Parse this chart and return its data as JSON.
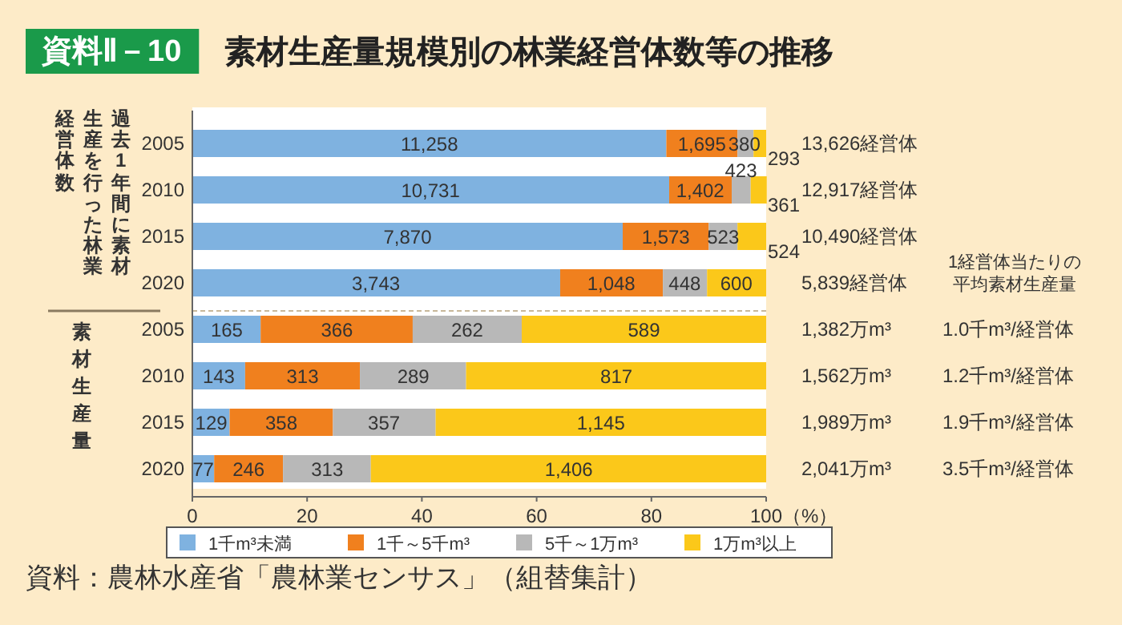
{
  "chart_data": [
    {
      "type": "bar",
      "orientation": "horizontal",
      "stacked": true,
      "title": "資料Ⅱ－10",
      "subtitle": "素材生産量規模別の林業経営体数等の推移",
      "ylabel": "過去1年間に素材生産を行った林業経営体数",
      "categories": [
        "2005",
        "2010",
        "2015",
        "2020"
      ],
      "xlim": [
        0,
        100
      ],
      "tick_labels": "y",
      "legend": false,
      "series": [
        {
          "color": "#7fb2e0",
          "values": [
            82.6,
            83.1,
            75.0,
            64.1
          ]
        },
        {
          "color": "#f0801e",
          "values": [
            12.4,
            10.9,
            15.0,
            17.9
          ]
        },
        {
          "color": "#b8b8b8",
          "values": [
            2.8,
            3.3,
            5.0,
            7.7
          ]
        },
        {
          "color": "#fbc81a",
          "values": [
            2.2,
            2.8,
            5.0,
            10.3
          ]
        }
      ],
      "annotations": [
        "13,626経営体",
        "12,917経営体",
        "10,490経営体",
        "5,839経営体",
        {
          "text": "11,258",
          "x": 41.3,
          "y": "2005"
        },
        {
          "text": "1,695",
          "x": 88.8,
          "y": "2005"
        },
        {
          "text": "380",
          "x": 96.2,
          "y": "2005"
        },
        {
          "text": "293",
          "x": 98.9,
          "y": "2005"
        },
        {
          "text": "10,731",
          "x": 41.5,
          "y": "2010"
        },
        {
          "text": "1,402",
          "x": 88.5,
          "y": "2010"
        },
        {
          "text": "423",
          "x": 95.6,
          "y": "2010"
        },
        {
          "text": "361",
          "x": 98.6,
          "y": "2010"
        },
        {
          "text": "7,870",
          "x": 37.5,
          "y": "2015"
        },
        {
          "text": "1,573",
          "x": 82.5,
          "y": "2015"
        },
        {
          "text": "523",
          "x": 92.5,
          "y": "2015"
        },
        {
          "text": "524",
          "x": 97.5,
          "y": "2015"
        },
        {
          "text": "3,743",
          "x": 32.0,
          "y": "2020"
        },
        {
          "text": "1,048",
          "x": 73.0,
          "y": "2020"
        },
        {
          "text": "448",
          "x": 85.8,
          "y": "2020"
        },
        {
          "text": "600",
          "x": 94.8,
          "y": "2020"
        }
      ]
    },
    {
      "type": "bar",
      "orientation": "horizontal",
      "stacked": true,
      "ylabel": "素材生産量",
      "xlabel": "（%）",
      "categories": [
        "2005",
        "2010",
        "2015",
        "2020"
      ],
      "xlim": [
        0,
        100
      ],
      "xticks": [
        0,
        20,
        40,
        60,
        80,
        100
      ],
      "legend": "bottom",
      "series": [
        {
          "name": "1千m³未満",
          "color": "#7fb2e0",
          "values": [
            11.9,
            9.2,
            6.5,
            3.8
          ]
        },
        {
          "name": "1千～5千m³",
          "color": "#f0801e",
          "values": [
            26.5,
            20.0,
            18.0,
            12.0
          ]
        },
        {
          "name": "5千～1万m³",
          "color": "#b8b8b8",
          "values": [
            19.0,
            18.5,
            17.9,
            15.3
          ]
        },
        {
          "name": "1万m³以上",
          "color": "#fbc81a",
          "values": [
            42.6,
            52.3,
            57.6,
            68.9
          ]
        }
      ],
      "annotations": [
        "1,382万m³",
        "1,562万m³",
        "1,989万m³",
        "2,041万m³",
        "1経営体当たりの平均素材生産量",
        "1.0千m³/経営体",
        "1.2千m³/経営体",
        "1.9千m³/経営体",
        "3.5千m³/経営体",
        "資料：農林水産省「農林業センサス」（組替集計）",
        {
          "text": "165",
          "x": 6.0,
          "y": "2005"
        },
        {
          "text": "366",
          "x": 25.2,
          "y": "2005"
        },
        {
          "text": "262",
          "x": 47.9,
          "y": "2005"
        },
        {
          "text": "589",
          "x": 78.7,
          "y": "2005"
        },
        {
          "text": "143",
          "x": 4.6,
          "y": "2010"
        },
        {
          "text": "313",
          "x": 19.2,
          "y": "2010"
        },
        {
          "text": "289",
          "x": 38.5,
          "y": "2010"
        },
        {
          "text": "817",
          "x": 73.9,
          "y": "2010"
        },
        {
          "text": "129",
          "x": 3.3,
          "y": "2015"
        },
        {
          "text": "358",
          "x": 15.5,
          "y": "2015"
        },
        {
          "text": "357",
          "x": 33.4,
          "y": "2015"
        },
        {
          "text": "1,145",
          "x": 71.2,
          "y": "2015"
        },
        {
          "text": "77",
          "x": 1.9,
          "y": "2020"
        },
        {
          "text": "246",
          "x": 9.8,
          "y": "2020"
        },
        {
          "text": "313",
          "x": 23.5,
          "y": "2020"
        },
        {
          "text": "1,406",
          "x": 65.6,
          "y": "2020"
        }
      ]
    }
  ]
}
